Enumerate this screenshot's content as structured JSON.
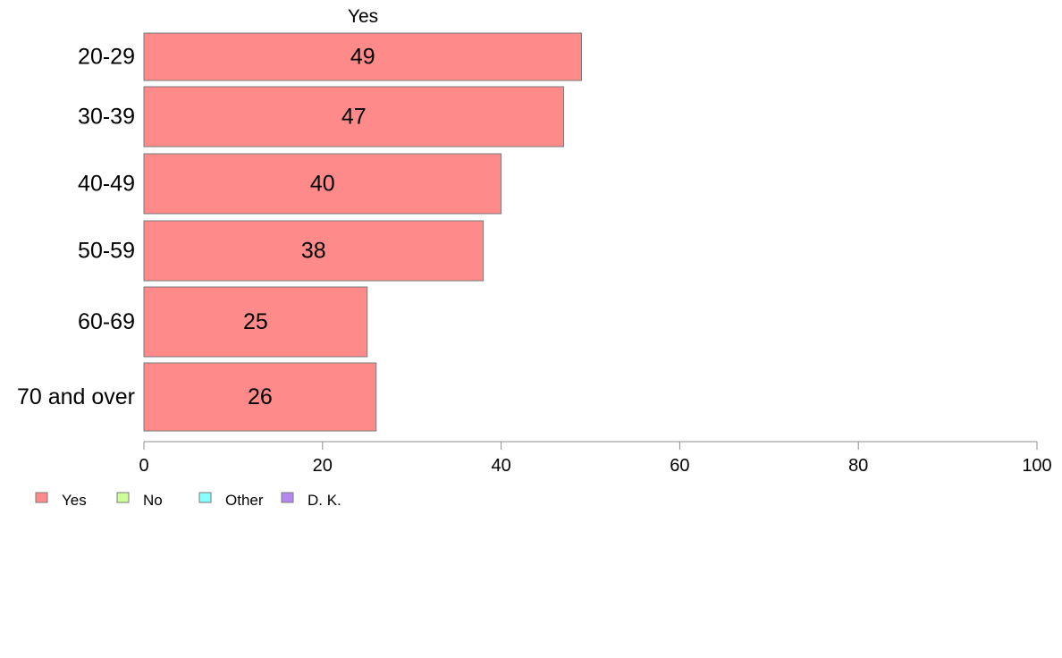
{
  "chart_data": {
    "type": "bar",
    "orientation": "horizontal",
    "series_title": "Yes",
    "categories": [
      "20-29",
      "30-39",
      "40-49",
      "50-59",
      "60-69",
      "70 and over"
    ],
    "series": [
      {
        "name": "Yes",
        "values": [
          49,
          47,
          40,
          38,
          25,
          26
        ],
        "color": "#ff8a8a"
      }
    ],
    "data_labels": [
      "49",
      "47",
      "40",
      "38",
      "25",
      "26"
    ],
    "xlim": [
      0,
      100
    ],
    "xticks": [
      0,
      20,
      40,
      60,
      80,
      100
    ],
    "xtick_labels": [
      "0",
      "20",
      "40",
      "60",
      "80",
      "100"
    ],
    "grid": false,
    "legend_position": "bottom-left",
    "legend": [
      {
        "label": "Yes",
        "color": "#ff8a8a"
      },
      {
        "label": "No",
        "color": "#ccff99"
      },
      {
        "label": "Other",
        "color": "#88ffff"
      },
      {
        "label": "D. K.",
        "color": "#b388ee"
      }
    ]
  }
}
